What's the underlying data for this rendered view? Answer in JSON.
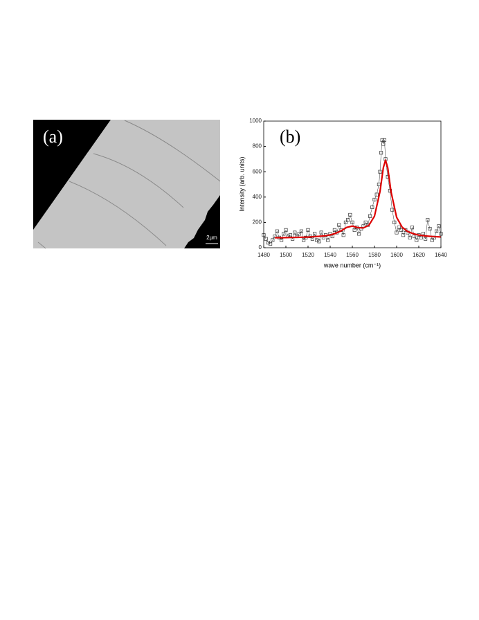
{
  "panel_a": {
    "label": "(a)",
    "scale_bar": "2μm"
  },
  "chart_data": {
    "type": "scatter",
    "panel_label": "(b)",
    "x_label": "wave number (cm⁻¹)",
    "y_label": "Intensity (arb. units)",
    "xlim": [
      1480,
      1640
    ],
    "xticks": [
      1480,
      1500,
      1520,
      1540,
      1560,
      1580,
      1600,
      1620,
      1640
    ],
    "ylim": [
      0,
      1000
    ],
    "yticks": [
      0,
      200,
      400,
      600,
      800,
      1000
    ],
    "series": [
      {
        "type": "scatter",
        "color": "#333333",
        "x": [
          1480,
          1482,
          1484,
          1486,
          1488,
          1490,
          1492,
          1494,
          1496,
          1498,
          1500,
          1502,
          1504,
          1506,
          1508,
          1510,
          1512,
          1514,
          1516,
          1518,
          1520,
          1522,
          1524,
          1526,
          1528,
          1530,
          1532,
          1534,
          1536,
          1538,
          1540,
          1542,
          1544,
          1546,
          1548,
          1550,
          1552,
          1554,
          1556,
          1558,
          1560,
          1562,
          1564,
          1566,
          1568,
          1570,
          1572,
          1574,
          1576,
          1578,
          1580,
          1582,
          1584,
          1585,
          1586,
          1587,
          1588,
          1589,
          1590,
          1592,
          1594,
          1596,
          1598,
          1600,
          1602,
          1604,
          1606,
          1608,
          1610,
          1612,
          1614,
          1616,
          1618,
          1620,
          1622,
          1624,
          1626,
          1628,
          1630,
          1632,
          1634,
          1636,
          1638,
          1640
        ],
        "values": [
          100,
          70,
          40,
          30,
          60,
          90,
          130,
          80,
          60,
          110,
          140,
          90,
          100,
          70,
          120,
          90,
          110,
          130,
          60,
          80,
          140,
          90,
          70,
          110,
          60,
          50,
          120,
          80,
          100,
          60,
          110,
          90,
          140,
          120,
          180,
          140,
          100,
          200,
          220,
          260,
          200,
          140,
          160,
          110,
          150,
          170,
          200,
          180,
          250,
          320,
          380,
          420,
          500,
          600,
          750,
          850,
          820,
          850,
          700,
          560,
          450,
          300,
          200,
          120,
          160,
          140,
          100,
          140,
          120,
          80,
          160,
          90,
          60,
          100,
          80,
          110,
          70,
          220,
          150,
          60,
          80,
          130,
          170,
          110
        ]
      },
      {
        "type": "line",
        "color": "#dd0000",
        "x": [
          1490,
          1495,
          1500,
          1505,
          1510,
          1515,
          1520,
          1525,
          1530,
          1535,
          1540,
          1545,
          1550,
          1555,
          1560,
          1565,
          1570,
          1575,
          1580,
          1585,
          1588,
          1590,
          1592,
          1595,
          1600,
          1605,
          1610,
          1615,
          1620,
          1625,
          1630,
          1635,
          1640
        ],
        "values": [
          79,
          79,
          80,
          81,
          82,
          83,
          84,
          87,
          90,
          94,
          101,
          114,
          134,
          161,
          171,
          159,
          156,
          178,
          249,
          444,
          632,
          692,
          630,
          440,
          240,
          162,
          128,
          111,
          100,
          94,
          90,
          87,
          85
        ]
      }
    ]
  }
}
